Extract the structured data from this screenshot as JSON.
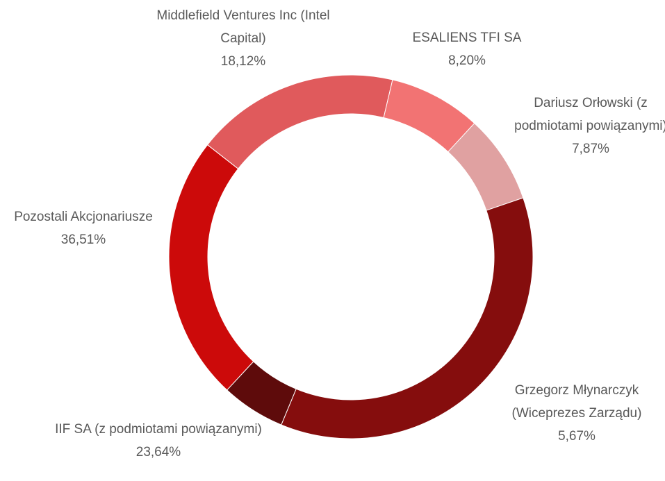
{
  "chart_data": {
    "type": "donut",
    "categories": [
      "Middlefield Ventures Inc (Intel Capital)",
      "ESALIENS TFI SA",
      "Dariusz Orłowski (z podmiotami powiązanymi)",
      "Pozostali Akcjonariusze",
      "Grzegorz Młynarczyk (Wiceprezes Zarządu)",
      "IIF SA (z podmiotami powiązanymi)"
    ],
    "values": [
      18.12,
      8.2,
      7.87,
      36.51,
      5.67,
      23.64
    ],
    "value_labels": [
      "18,12%",
      "8,20%",
      "7,87%",
      "36,51%",
      "5,67%",
      "23,64%"
    ],
    "colors": [
      "#e05a5c",
      "#f27373",
      "#e0a1a1",
      "#850d0d",
      "#5e0b0b",
      "#cc0a0a"
    ]
  }
}
